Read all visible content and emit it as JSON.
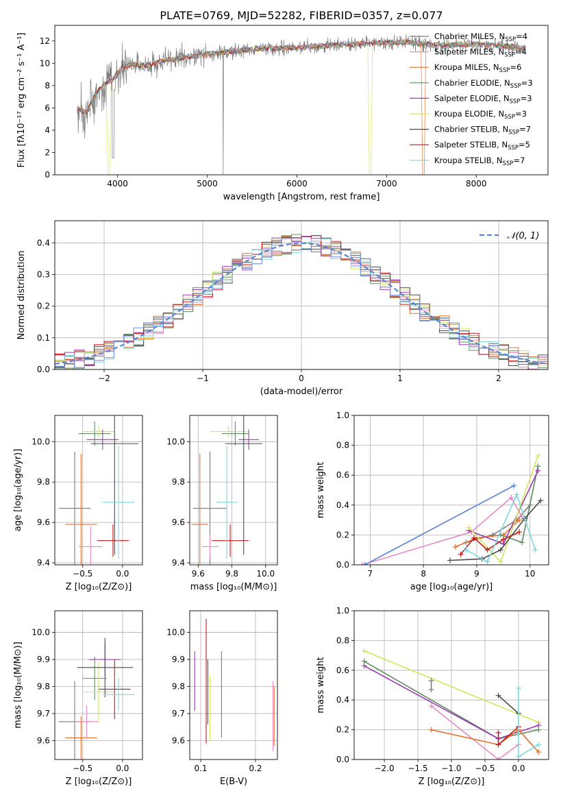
{
  "figure_title": "PLATE=0769, MJD=52282, FIBERID=0357, z=0.077",
  "colors": {
    "chabrier_miles": "#7a7a7a",
    "salpeter_miles": "#e78ac3",
    "kroupa_miles": "#e4712b",
    "chabrier_elodie": "#5f8d5f",
    "salpeter_elodie": "#9b3ab5",
    "kroupa_elodie": "#d7e35a",
    "chabrier_stelib": "#4a4a4a",
    "salpeter_stelib": "#c01818",
    "kroupa_stelib": "#7fd6dc",
    "normal_curve": "#5b84d6",
    "grid": "#b0b0b0"
  },
  "chart_data": [
    {
      "id": "spectrum",
      "type": "line",
      "title": "PLATE=0769, MJD=52282, FIBERID=0357, z=0.077",
      "xlabel": "wavelength [Angstrom, rest frame]",
      "ylabel": "Flux [fλ10⁻¹⁷ erg cm⁻² s⁻¹ A⁻¹]",
      "xlim": [
        3300,
        8800
      ],
      "ylim": [
        0,
        13.4
      ],
      "xticks": [
        "4000",
        "5000",
        "6000",
        "7000",
        "8000"
      ],
      "yticks": [
        "0",
        "2",
        "4",
        "6",
        "8",
        "10",
        "12"
      ],
      "grid": false,
      "legend_position": "right",
      "continuum": {
        "x": [
          3550,
          3650,
          3750,
          3850,
          3950,
          4050,
          4150,
          4300,
          4500,
          4800,
          5200,
          5600,
          6000,
          6400,
          6800,
          7200,
          7600,
          8000,
          8400,
          8550
        ],
        "y": [
          6.0,
          5.5,
          7.2,
          8.1,
          8.6,
          9.6,
          9.9,
          9.8,
          10.2,
          10.6,
          11.0,
          11.3,
          11.4,
          11.6,
          11.8,
          11.9,
          11.6,
          11.7,
          11.5,
          11.3
        ]
      },
      "series": [
        {
          "name": "Chabrier MILES, N",
          "sub": "SSP",
          "suffix": "=4",
          "color": "#7a7a7a"
        },
        {
          "name": "Salpeter MILES, N",
          "sub": "SSP",
          "suffix": "=4",
          "color": "#e78ac3"
        },
        {
          "name": "Kroupa MILES, N",
          "sub": "SSP",
          "suffix": "=6",
          "color": "#e4712b"
        },
        {
          "name": "Chabrier ELODIE, N",
          "sub": "SSP",
          "suffix": "=3",
          "color": "#5f8d5f"
        },
        {
          "name": "Salpeter ELODIE, N",
          "sub": "SSP",
          "suffix": "=3",
          "color": "#9b3ab5"
        },
        {
          "name": "Kroupa ELODIE, N",
          "sub": "SSP",
          "suffix": "=3",
          "color": "#d7e35a"
        },
        {
          "name": "Chabrier STELIB, N",
          "sub": "SSP",
          "suffix": "=7",
          "color": "#4a4a4a"
        },
        {
          "name": "Salpeter STELIB, N",
          "sub": "SSP",
          "suffix": "=5",
          "color": "#c01818"
        },
        {
          "name": "Kroupa STELIB, N",
          "sub": "SSP",
          "suffix": "=7",
          "color": "#7fd6dc"
        }
      ]
    },
    {
      "id": "residuals",
      "type": "line",
      "xlabel": "(data-model)/error",
      "ylabel": "Normed distribution",
      "xlim": [
        -2.5,
        2.5
      ],
      "ylim": [
        0,
        0.47
      ],
      "xticks": [
        "−2",
        "−1",
        "0",
        "1",
        "2"
      ],
      "yticks": [
        "0.0",
        "0.1",
        "0.2",
        "0.3",
        "0.4"
      ],
      "grid": true,
      "legend_position": "top-right",
      "legend_label": "𝒩(0, 1)",
      "bin_width": 0.1
    },
    {
      "id": "z_age",
      "type": "scatter",
      "xlabel": "Z [log₁₀(Z/Z⊙)]",
      "ylabel": "age  [log₁₀(age/yr)]",
      "xlim": [
        -0.85,
        0.25
      ],
      "ylim": [
        9.39,
        10.13
      ],
      "xticks": [
        "−0.5",
        "0.0"
      ],
      "yticks": [
        "9.4",
        "9.6",
        "9.8",
        "10.0"
      ],
      "grid": true,
      "points": [
        {
          "x": -0.6,
          "y": 9.67,
          "xerr": 0.2,
          "yerr": 0.28,
          "series": "Chabrier MILES"
        },
        {
          "x": -0.52,
          "y": 9.59,
          "xerr": 0.2,
          "yerr": 0.35,
          "series": "Kroupa MILES"
        },
        {
          "x": -0.4,
          "y": 9.48,
          "xerr": 0.15,
          "yerr": 0.1,
          "series": "Salpeter MILES"
        },
        {
          "x": -0.35,
          "y": 10.04,
          "xerr": 0.2,
          "yerr": 0.06,
          "series": "Chabrier ELODIE"
        },
        {
          "x": -0.3,
          "y": 10.05,
          "xerr": 0.2,
          "yerr": 0.03,
          "series": "Kroupa ELODIE"
        },
        {
          "x": -0.25,
          "y": 10.01,
          "xerr": 0.2,
          "yerr": 0.05,
          "series": "Salpeter ELODIE"
        },
        {
          "x": -0.12,
          "y": 9.51,
          "xerr": 0.2,
          "yerr": 0.08,
          "series": "Salpeter STELIB"
        },
        {
          "x": -0.1,
          "y": 9.99,
          "xerr": 0.3,
          "yerr": 0.55,
          "series": "Chabrier STELIB"
        },
        {
          "x": -0.05,
          "y": 9.7,
          "xerr": 0.2,
          "yerr": 0.28,
          "series": "Kroupa STELIB"
        }
      ]
    },
    {
      "id": "mass_age",
      "type": "scatter",
      "xlabel": "mass [log₁₀(M/M⊙)]",
      "ylabel": "",
      "xlim": [
        9.55,
        10.07
      ],
      "ylim": [
        9.39,
        10.13
      ],
      "xticks": [
        "9.6",
        "9.8",
        "10.0"
      ],
      "yticks": [
        "9.4",
        "9.6",
        "9.8",
        "10.0"
      ],
      "grid": true,
      "points": [
        {
          "x": 9.67,
          "y": 9.67,
          "xerr": 0.1,
          "yerr": 0.28,
          "series": "Chabrier MILES"
        },
        {
          "x": 9.61,
          "y": 9.59,
          "xerr": 0.05,
          "yerr": 0.35,
          "series": "Kroupa MILES"
        },
        {
          "x": 9.67,
          "y": 9.48,
          "xerr": 0.05,
          "yerr": 0.06,
          "series": "Salpeter MILES"
        },
        {
          "x": 9.82,
          "y": 10.04,
          "xerr": 0.08,
          "yerr": 0.06,
          "series": "Chabrier ELODIE"
        },
        {
          "x": 9.78,
          "y": 10.05,
          "xerr": 0.11,
          "yerr": 0.03,
          "series": "Kroupa ELODIE"
        },
        {
          "x": 9.9,
          "y": 10.01,
          "xerr": 0.06,
          "yerr": 0.05,
          "series": "Salpeter ELODIE"
        },
        {
          "x": 9.79,
          "y": 9.51,
          "xerr": 0.11,
          "yerr": 0.08,
          "series": "Salpeter STELIB"
        },
        {
          "x": 9.87,
          "y": 9.99,
          "xerr": 0.11,
          "yerr": 0.55,
          "series": "Chabrier STELIB"
        },
        {
          "x": 9.77,
          "y": 9.7,
          "xerr": 0.06,
          "yerr": 0.28,
          "series": "Kroupa STELIB"
        }
      ]
    },
    {
      "id": "weight_age",
      "type": "line",
      "xlabel": "age  [log₁₀(age/yr)]",
      "ylabel": "mass weight",
      "xlim": [
        6.7,
        10.35
      ],
      "ylim": [
        0,
        1.0
      ],
      "xticks": [
        "7",
        "8",
        "9",
        "10"
      ],
      "yticks": [
        "0.0",
        "0.2",
        "0.4",
        "0.6",
        "0.8",
        "1.0"
      ],
      "grid": true,
      "series": [
        {
          "name": "Chabrier MILES",
          "x": [
            8.8,
            9.3,
            9.75,
            10.0
          ],
          "y": [
            0.15,
            0.2,
            0.3,
            0.4
          ]
        },
        {
          "name": "Salpeter MILES",
          "x": [
            6.85,
            8.9,
            9.65,
            9.85
          ],
          "y": [
            0.0,
            0.22,
            0.45,
            0.32
          ]
        },
        {
          "name": "Kroupa MILES",
          "x": [
            8.6,
            9.0,
            9.5,
            9.8
          ],
          "y": [
            0.12,
            0.18,
            0.2,
            0.3
          ]
        },
        {
          "name": "Chabrier ELODIE",
          "x": [
            9.45,
            9.85,
            10.15
          ],
          "y": [
            0.2,
            0.15,
            0.66
          ]
        },
        {
          "name": "Salpeter ELODIE",
          "x": [
            8.85,
            9.5,
            10.15
          ],
          "y": [
            0.23,
            0.14,
            0.63
          ]
        },
        {
          "name": "Kroupa ELODIE",
          "x": [
            8.85,
            9.45,
            10.15
          ],
          "y": [
            0.25,
            0.02,
            0.73
          ]
        },
        {
          "name": "Chabrier STELIB",
          "x": [
            8.5,
            9.1,
            9.45,
            9.9,
            10.2
          ],
          "y": [
            0.03,
            0.04,
            0.1,
            0.31,
            0.43
          ]
        },
        {
          "name": "Salpeter STELIB",
          "x": [
            8.7,
            8.95,
            9.2,
            9.5,
            9.8
          ],
          "y": [
            0.07,
            0.18,
            0.1,
            0.17,
            0.22
          ]
        },
        {
          "name": "Kroupa STELIB",
          "x": [
            8.8,
            9.2,
            9.75,
            10.1
          ],
          "y": [
            0.1,
            0.02,
            0.47,
            0.1
          ]
        },
        {
          "name": "Chabrier MILES b",
          "x": [
            6.9,
            9.7
          ],
          "y": [
            0.0,
            0.53
          ]
        }
      ]
    },
    {
      "id": "z_mass",
      "type": "scatter",
      "xlabel": "Z [log₁₀(Z/Z⊙)]",
      "ylabel": "mass [log₁₀(M/M⊙)]",
      "xlim": [
        -0.85,
        0.25
      ],
      "ylim": [
        9.53,
        10.08
      ],
      "xticks": [
        "−0.5",
        "0.0"
      ],
      "yticks": [
        "9.6",
        "9.7",
        "9.8",
        "9.9",
        "10.0"
      ],
      "grid": true,
      "points": [
        {
          "x": -0.6,
          "y": 9.67,
          "xerr": 0.2,
          "yerr": 0.15,
          "series": "Chabrier MILES"
        },
        {
          "x": -0.52,
          "y": 9.61,
          "xerr": 0.2,
          "yerr": 0.08,
          "series": "Kroupa MILES"
        },
        {
          "x": -0.45,
          "y": 9.67,
          "xerr": 0.15,
          "yerr": 0.06,
          "series": "Salpeter MILES"
        },
        {
          "x": -0.35,
          "y": 9.83,
          "xerr": 0.15,
          "yerr": 0.08,
          "series": "Chabrier ELODIE"
        },
        {
          "x": -0.3,
          "y": 9.78,
          "xerr": 0.2,
          "yerr": 0.11,
          "series": "Kroupa ELODIE"
        },
        {
          "x": -0.22,
          "y": 9.9,
          "xerr": 0.2,
          "yerr": 0.06,
          "series": "Salpeter ELODIE"
        },
        {
          "x": -0.1,
          "y": 9.79,
          "xerr": 0.2,
          "yerr": 0.11,
          "series": "Salpeter STELIB"
        },
        {
          "x": -0.22,
          "y": 9.87,
          "xerr": 0.35,
          "yerr": 0.11,
          "series": "Chabrier STELIB"
        },
        {
          "x": -0.05,
          "y": 9.77,
          "xerr": 0.2,
          "yerr": 0.06,
          "series": "Kroupa STELIB"
        }
      ]
    },
    {
      "id": "ebv_mass",
      "type": "scatter",
      "xlabel": "E(B-V)",
      "ylabel": "",
      "xlim": [
        0.08,
        0.24
      ],
      "ylim": [
        9.53,
        10.08
      ],
      "xticks": [
        "0.1",
        "0.2"
      ],
      "yticks": [
        "9.6",
        "9.7",
        "9.8",
        "9.9",
        "10.0"
      ],
      "grid": true,
      "points": [
        {
          "x": 0.089,
          "y": 9.82,
          "yerr": 0.11,
          "series": "Salpeter ELODIE"
        },
        {
          "x": 0.11,
          "y": 9.82,
          "yerr": 0.23,
          "series": "Salpeter STELIB"
        },
        {
          "x": 0.113,
          "y": 9.78,
          "yerr": 0.12,
          "series": "Chabrier STELIB"
        },
        {
          "x": 0.117,
          "y": 9.72,
          "yerr": 0.12,
          "series": "Kroupa ELODIE"
        },
        {
          "x": 0.138,
          "y": 9.77,
          "yerr": 0.16,
          "series": "Chabrier ELODIE"
        },
        {
          "x": 0.232,
          "y": 9.69,
          "yerr": 0.13,
          "series": "Salpeter MILES"
        },
        {
          "x": 0.234,
          "y": 9.69,
          "yerr": 0.11,
          "series": "Kroupa MILES"
        }
      ]
    },
    {
      "id": "weight_z",
      "type": "line",
      "xlabel": "Z [log₁₀(Z/Z⊙)]",
      "ylabel": "mass weight",
      "xlim": [
        -2.45,
        0.45
      ],
      "ylim": [
        0,
        1.0
      ],
      "xticks": [
        "−2.0",
        "−1.5",
        "−1.0",
        "−0.5",
        "0.0"
      ],
      "yticks": [
        "0.0",
        "0.2",
        "0.4",
        "0.6",
        "0.8",
        "1.0"
      ],
      "grid": true,
      "series": [
        {
          "name": "Kroupa ELODIE",
          "x": [
            -2.3,
            0.3
          ],
          "y": [
            0.73,
            0.25
          ]
        },
        {
          "name": "Chabrier ELODIE",
          "x": [
            -2.3,
            -0.3,
            0.3
          ],
          "y": [
            0.66,
            0.14,
            0.2
          ]
        },
        {
          "name": "Salpeter ELODIE",
          "x": [
            -2.3,
            -0.3,
            0.3
          ],
          "y": [
            0.63,
            0.14,
            0.23
          ]
        },
        {
          "name": "Salpeter MILES",
          "x": [
            -1.3,
            -0.3,
            0.0
          ],
          "y": [
            0.36,
            0.0,
            0.1
          ]
        },
        {
          "name": "Chabrier MILES",
          "x": [
            -1.3,
            -1.3
          ],
          "y": [
            0.47,
            0.53
          ]
        },
        {
          "name": "Kroupa MILES",
          "x": [
            -1.3,
            -0.3,
            0.0,
            0.3
          ],
          "y": [
            0.2,
            0.1,
            0.2,
            0.05
          ]
        },
        {
          "name": "Chabrier STELIB",
          "x": [
            -0.3,
            0.0
          ],
          "y": [
            0.43,
            0.31
          ]
        },
        {
          "name": "Salpeter STELIB",
          "x": [
            -0.3,
            -0.3,
            0.0
          ],
          "y": [
            0.18,
            0.1,
            0.22
          ]
        },
        {
          "name": "Kroupa STELIB",
          "x": [
            0.0,
            0.0,
            0.3
          ],
          "y": [
            0.48,
            0.02,
            0.1
          ]
        }
      ]
    }
  ]
}
